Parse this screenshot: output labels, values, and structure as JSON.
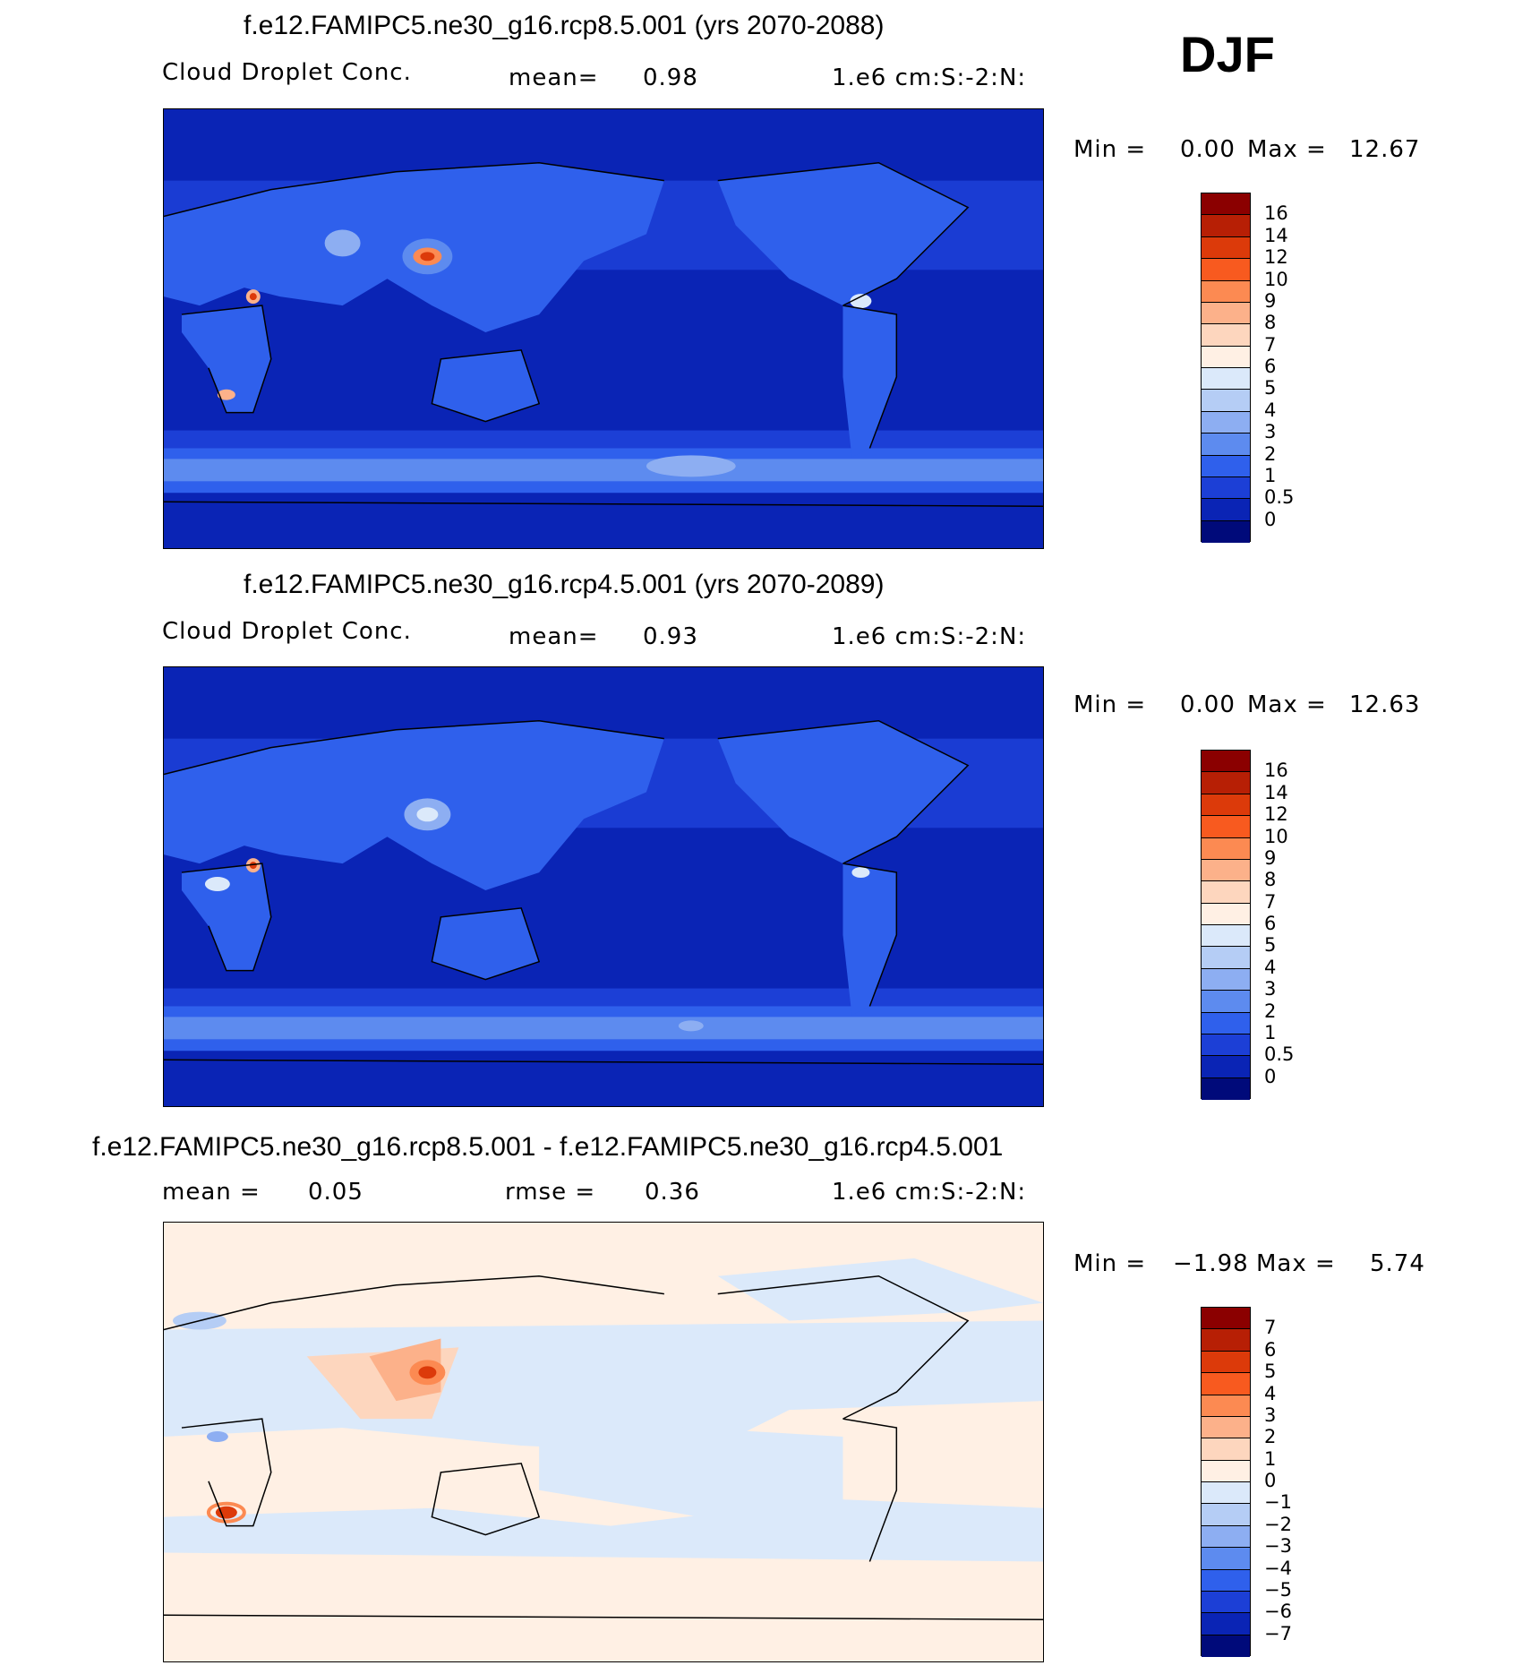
{
  "season": "DJF",
  "panels": [
    {
      "title": "f.e12.FAMIPC5.ne30_g16.rcp8.5.001 (yrs 2070-2088)",
      "variable": "Cloud Droplet Conc.",
      "stat_label": "mean=",
      "stat_value": "0.98",
      "units": "1.e6 cm:S:-2:N:",
      "min_label": "Min =",
      "min_value": "0.00",
      "max_label": "Max =",
      "max_value": "12.67",
      "colorbar": {
        "labels": [
          "16",
          "14",
          "12",
          "10",
          "9",
          "8",
          "7",
          "6",
          "5",
          "4",
          "3",
          "2",
          "1",
          "0.5",
          "0"
        ],
        "colors": [
          "#8b0000",
          "#b71f05",
          "#dc3a0a",
          "#f85a1f",
          "#fc8a52",
          "#fcb18a",
          "#fdd6be",
          "#fff0e4",
          "#dbe9fa",
          "#b5cdf5",
          "#8daef2",
          "#5d8bef",
          "#2f60ec",
          "#1c3fd6",
          "#0a24b5",
          "#000a7a"
        ]
      },
      "map_theme": "absolute"
    },
    {
      "title": "f.e12.FAMIPC5.ne30_g16.rcp4.5.001 (yrs 2070-2089)",
      "variable": "Cloud Droplet Conc.",
      "stat_label": "mean=",
      "stat_value": "0.93",
      "units": "1.e6 cm:S:-2:N:",
      "min_label": "Min =",
      "min_value": "0.00",
      "max_label": "Max =",
      "max_value": "12.63",
      "colorbar": {
        "labels": [
          "16",
          "14",
          "12",
          "10",
          "9",
          "8",
          "7",
          "6",
          "5",
          "4",
          "3",
          "2",
          "1",
          "0.5",
          "0"
        ],
        "colors": [
          "#8b0000",
          "#b71f05",
          "#dc3a0a",
          "#f85a1f",
          "#fc8a52",
          "#fcb18a",
          "#fdd6be",
          "#fff0e4",
          "#dbe9fa",
          "#b5cdf5",
          "#8daef2",
          "#5d8bef",
          "#2f60ec",
          "#1c3fd6",
          "#0a24b5",
          "#000a7a"
        ]
      },
      "map_theme": "absolute"
    },
    {
      "title": "f.e12.FAMIPC5.ne30_g16.rcp8.5.001 - f.e12.FAMIPC5.ne30_g16.rcp4.5.001",
      "stat_label": "mean =",
      "stat_value": "0.05",
      "rmse_label": "rmse =",
      "rmse_value": "0.36",
      "units": "1.e6 cm:S:-2:N:",
      "min_label": "Min =",
      "min_value": "−1.98",
      "max_label": "Max =",
      "max_value": "5.74",
      "colorbar": {
        "labels": [
          "7",
          "6",
          "5",
          "4",
          "3",
          "2",
          "1",
          "0",
          "−1",
          "−2",
          "−3",
          "−4",
          "−5",
          "−6",
          "−7"
        ],
        "colors": [
          "#8b0000",
          "#b71f05",
          "#dc3a0a",
          "#f85a1f",
          "#fc8a52",
          "#fcb18a",
          "#fdd6be",
          "#fff0e4",
          "#dbe9fa",
          "#b5cdf5",
          "#8daef2",
          "#5d8bef",
          "#2f60ec",
          "#1c3fd6",
          "#0a24b5",
          "#000a7a"
        ]
      },
      "map_theme": "difference"
    }
  ]
}
